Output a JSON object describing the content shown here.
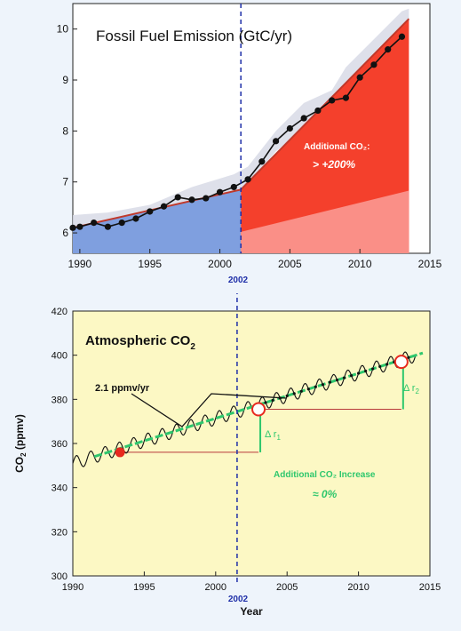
{
  "chart_data": [
    {
      "type": "area",
      "title": "Fossil Fuel Emission (GtC/yr)",
      "xlim": [
        1989.5,
        2015
      ],
      "ylim": [
        5.6,
        10.5
      ],
      "x_ticks": [
        1990,
        1995,
        2000,
        2005,
        2010,
        2015
      ],
      "y_ticks": [
        6,
        7,
        8,
        9,
        10
      ],
      "marker_year": 2001.5,
      "marker_label": "2002",
      "annotation": "Additional CO₂:",
      "annotation_value": "> +200%",
      "trend_line": {
        "x": [
          1989.5,
          2001.5,
          2013.5
        ],
        "y": [
          6.1,
          6.85,
          10.2
        ]
      },
      "observed": {
        "x": [
          1989.5,
          1990,
          1991,
          1992,
          1993,
          1994,
          1995,
          1996,
          1997,
          1998,
          1999,
          2000,
          2001,
          2002,
          2003,
          2004,
          2005,
          2006,
          2007,
          2008,
          2009,
          2010,
          2011,
          2012,
          2013
        ],
        "y": [
          6.1,
          6.12,
          6.2,
          6.12,
          6.2,
          6.28,
          6.42,
          6.52,
          6.7,
          6.65,
          6.68,
          6.8,
          6.9,
          7.05,
          7.4,
          7.8,
          8.05,
          8.25,
          8.4,
          8.6,
          8.65,
          9.05,
          9.3,
          9.6,
          9.85
        ]
      },
      "uncertainty_upper": {
        "x": [
          1989.5,
          1992,
          1995,
          1998,
          2001,
          2002,
          2004,
          2006,
          2008,
          2009,
          2011,
          2013,
          2013.5
        ],
        "y": [
          6.35,
          6.4,
          6.55,
          6.9,
          7.15,
          7.3,
          8.0,
          8.55,
          8.8,
          9.25,
          9.8,
          10.35,
          10.4
        ]
      },
      "uncertainty_lower": {
        "x": [
          1989.5,
          1992,
          1995,
          1998,
          2001,
          2002,
          2004,
          2006,
          2008,
          2009,
          2011,
          2013,
          2013.5
        ],
        "y": [
          6.0,
          6.05,
          6.3,
          6.48,
          6.75,
          6.95,
          7.6,
          8.05,
          8.4,
          8.55,
          9.1,
          9.6,
          9.7
        ]
      },
      "light_wedge_top": {
        "x": [
          2001.5,
          2013.5
        ],
        "y": [
          6.02,
          6.83
        ]
      },
      "colors": {
        "blue": "#7f9fdf",
        "red": "#f4402c",
        "light_red": "#fa8f87",
        "band": "#d8dbe6",
        "line": "#c0392b"
      }
    },
    {
      "type": "line",
      "title": "Atmospheric CO",
      "title_sub": "2",
      "xlabel": "Year",
      "ylabel": "CO",
      "ylabel_sub": "2",
      "ylabel_unit": " (ppmv)",
      "xlim": [
        1990,
        2015
      ],
      "ylim": [
        300,
        420
      ],
      "x_ticks": [
        1990,
        1995,
        2000,
        2005,
        2010,
        2015
      ],
      "y_ticks": [
        300,
        320,
        340,
        360,
        380,
        400,
        420
      ],
      "marker_year": 2001.5,
      "marker_label": "2002",
      "rate_label": "2.1 ppmv/yr",
      "delta1_label": "Δ r",
      "delta1_sub": "1",
      "delta2_label": "Δ r",
      "delta2_sub": "2",
      "annotation": "Additional CO₂ Increase",
      "annotation_value": "≈ 0%",
      "trend": {
        "x": [
          1990,
          2015
        ],
        "y": [
          351,
          402
        ]
      },
      "seasonal_amplitude": 3,
      "points": [
        {
          "x": 1993.3,
          "y": 356,
          "style": "filled"
        },
        {
          "x": 2003.0,
          "y": 375.5,
          "style": "open"
        },
        {
          "x": 2013.0,
          "y": 397,
          "style": "open"
        }
      ],
      "colors": {
        "background": "#fcf8c4",
        "trend": "#2ec76d",
        "wave": "#111111",
        "filled": "#e8291e",
        "open": "#e8291e",
        "guide": "#b83a3a",
        "delta": "#2ec76d",
        "marker": "#1f2fa8"
      }
    }
  ]
}
